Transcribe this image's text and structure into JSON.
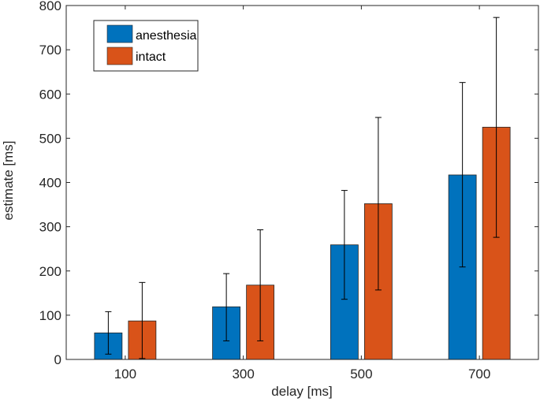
{
  "chart_data": {
    "type": "bar",
    "title": "",
    "xlabel": "delay [ms]",
    "ylabel": "estimate [ms]",
    "categories": [
      "100",
      "300",
      "500",
      "700"
    ],
    "ylim": [
      0,
      800
    ],
    "yticks": [
      0,
      100,
      200,
      300,
      400,
      500,
      600,
      700,
      800
    ],
    "grid": false,
    "legend_position": "top-left",
    "series": [
      {
        "name": "anesthesia",
        "color": "#0072BD",
        "values": [
          60,
          119,
          259,
          417
        ],
        "error_low": [
          12,
          42,
          136,
          209
        ],
        "error_high": [
          108,
          194,
          382,
          626
        ]
      },
      {
        "name": "intact",
        "color": "#D95319",
        "values": [
          87,
          168,
          352,
          525
        ],
        "error_low": [
          2,
          42,
          157,
          276
        ],
        "error_high": [
          174,
          293,
          547,
          773
        ]
      }
    ]
  }
}
